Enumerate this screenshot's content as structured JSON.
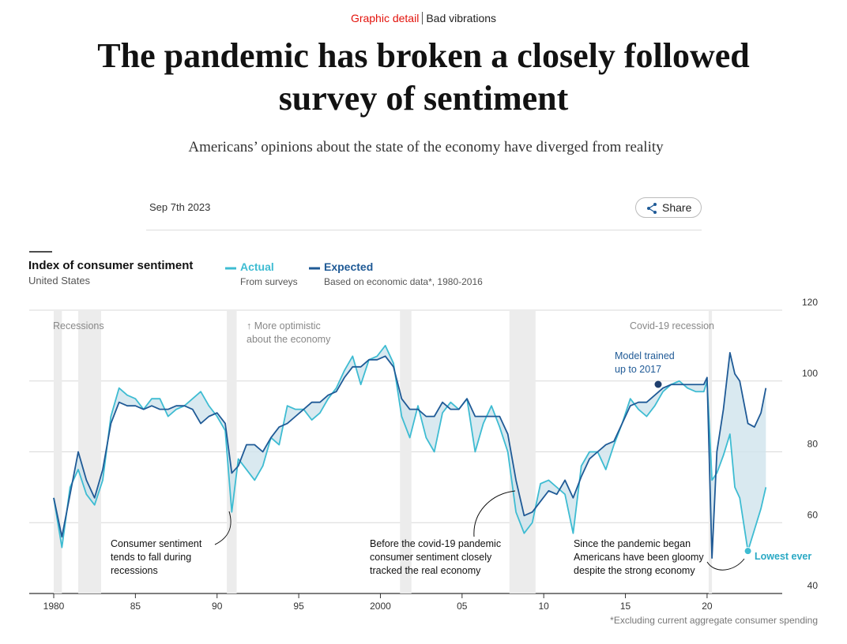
{
  "header": {
    "section": "Graphic detail",
    "topic": "Bad vibrations",
    "title": [
      "The pandemic has broken a closely followed",
      "survey of sentiment"
    ],
    "subtitle": "Americans’ opinions about the state of the economy have diverged from reality",
    "date": "Sep 7th 2023",
    "share": "Share"
  },
  "chart_data": {
    "type": "line",
    "title": "Index of consumer sentiment",
    "subtitle": "United States",
    "x": [
      1980.0,
      1980.5,
      1981.0,
      1981.5,
      1982.0,
      1982.5,
      1983.0,
      1983.5,
      1984.0,
      1984.5,
      1985.0,
      1985.5,
      1986.0,
      1986.5,
      1987.0,
      1987.5,
      1988.0,
      1988.5,
      1989.0,
      1989.5,
      1990.0,
      1990.5,
      1990.9,
      1991.3,
      1991.8,
      1992.3,
      1992.8,
      1993.3,
      1993.8,
      1994.3,
      1994.8,
      1995.3,
      1995.8,
      1996.3,
      1996.8,
      1997.3,
      1997.8,
      1998.3,
      1998.8,
      1999.3,
      1999.8,
      2000.3,
      2000.8,
      2001.3,
      2001.8,
      2002.3,
      2002.8,
      2003.3,
      2003.8,
      2004.3,
      2004.8,
      2005.3,
      2005.8,
      2006.3,
      2006.8,
      2007.3,
      2007.8,
      2008.3,
      2008.8,
      2009.3,
      2009.8,
      2010.3,
      2010.8,
      2011.3,
      2011.8,
      2012.3,
      2012.8,
      2013.3,
      2013.8,
      2014.3,
      2014.8,
      2015.3,
      2015.8,
      2016.3,
      2016.8,
      2017.3,
      2017.8,
      2018.3,
      2018.8,
      2019.3,
      2019.8,
      2020.0,
      2020.3,
      2020.6,
      2021.0,
      2021.4,
      2021.7,
      2022.0,
      2022.5,
      2022.9,
      2023.3,
      2023.6
    ],
    "series": [
      {
        "name": "Actual",
        "description": "From surveys",
        "color": "#3ebcd2",
        "values": [
          67,
          53,
          70,
          75,
          68,
          65,
          72,
          90,
          98,
          96,
          95,
          92,
          95,
          95,
          90,
          92,
          93,
          95,
          97,
          93,
          90,
          86,
          63,
          78,
          75,
          72,
          76,
          84,
          82,
          93,
          92,
          92,
          89,
          91,
          95,
          98,
          103,
          107,
          99,
          106,
          107,
          110,
          105,
          90,
          84,
          93,
          84,
          80,
          91,
          94,
          92,
          95,
          80,
          88,
          93,
          87,
          80,
          63,
          57,
          60,
          71,
          72,
          70,
          68,
          57,
          76,
          80,
          80,
          75,
          82,
          88,
          95,
          92,
          90,
          93,
          97,
          99,
          100,
          98,
          97,
          97,
          100,
          72,
          74,
          79,
          85,
          70,
          67,
          52,
          58,
          64,
          70
        ]
      },
      {
        "name": "Expected",
        "description": "Based on economic data*, 1980-2016",
        "color": "#1f5a96",
        "values": [
          67,
          56,
          68,
          80,
          72,
          67,
          75,
          88,
          94,
          93,
          93,
          92,
          93,
          92,
          92,
          93,
          93,
          92,
          88,
          90,
          91,
          88,
          74,
          76,
          82,
          82,
          80,
          84,
          87,
          88,
          90,
          92,
          94,
          94,
          96,
          97,
          101,
          104,
          104,
          106,
          106,
          107,
          104,
          95,
          92,
          92,
          90,
          90,
          94,
          92,
          92,
          95,
          90,
          90,
          90,
          90,
          85,
          72,
          62,
          63,
          66,
          69,
          68,
          72,
          67,
          73,
          78,
          80,
          82,
          83,
          88,
          93,
          94,
          94,
          96,
          98,
          99,
          99,
          99,
          99,
          99,
          101,
          50,
          80,
          92,
          108,
          102,
          100,
          88,
          87,
          91,
          98
        ]
      }
    ],
    "recessions": [
      [
        1980.0,
        1980.5
      ],
      [
        1981.5,
        1982.9
      ],
      [
        1990.6,
        1991.2
      ],
      [
        2001.2,
        2001.9
      ],
      [
        2007.9,
        2009.5
      ],
      [
        2020.1,
        2020.3
      ]
    ],
    "xlim": [
      1978.5,
      2024.6
    ],
    "ylim": [
      40,
      120
    ],
    "xticks": [
      1980,
      {
        "value": 1985,
        "label": "85"
      },
      {
        "value": 1990,
        "label": "90"
      },
      {
        "value": 1995,
        "label": "95"
      },
      2000,
      {
        "value": 2005,
        "label": "05"
      },
      {
        "value": 2010,
        "label": "10"
      },
      {
        "value": 2015,
        "label": "15"
      },
      {
        "value": 2020,
        "label": "20"
      }
    ],
    "yticks": [
      40,
      60,
      80,
      100,
      120
    ],
    "grid": true,
    "annotations": [
      {
        "lines": [
          "Recessions"
        ]
      },
      {
        "lines": [
          "↑ More optimistic",
          "about the economy"
        ]
      },
      {
        "lines": [
          "Covid-19 recession"
        ]
      },
      {
        "lines": [
          "Model trained",
          "up to 2017"
        ]
      },
      {
        "lines": [
          "Consumer sentiment",
          "tends to fall during",
          "recessions"
        ]
      },
      {
        "lines": [
          "Before the covid-19 pandemic",
          "consumer sentiment closely",
          "tracked the real economy"
        ]
      },
      {
        "lines": [
          "Since the pandemic began",
          "Americans have been gloomy",
          "despite the strong economy"
        ]
      },
      {
        "lines": [
          "Lowest ever"
        ]
      }
    ],
    "footnote": "*Excluding current aggregate consumer spending"
  }
}
